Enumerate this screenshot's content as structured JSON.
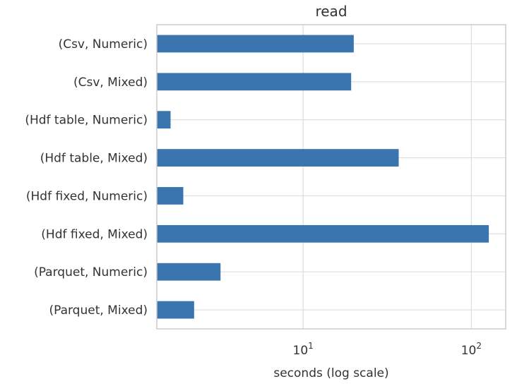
{
  "chart_data": {
    "type": "bar",
    "orientation": "horizontal",
    "title": "read",
    "xlabel": "seconds (log scale)",
    "ylabel": "",
    "xscale": "log",
    "xlim": [
      1.35,
      160
    ],
    "x_ticks": [
      {
        "value": 10,
        "base": "10",
        "exp": "1"
      },
      {
        "value": 100,
        "base": "10",
        "exp": "2"
      }
    ],
    "grid": true,
    "bar_color": "#3a75af",
    "categories": [
      "(Csv, Numeric)",
      "(Csv, Mixed)",
      "(Hdf table, Numeric)",
      "(Hdf table, Mixed)",
      "(Hdf fixed, Numeric)",
      "(Hdf fixed, Mixed)",
      "(Parquet, Numeric)",
      "(Parquet, Mixed)"
    ],
    "values": [
      20.0,
      19.3,
      1.63,
      37.0,
      1.94,
      127.0,
      3.23,
      2.25
    ]
  }
}
